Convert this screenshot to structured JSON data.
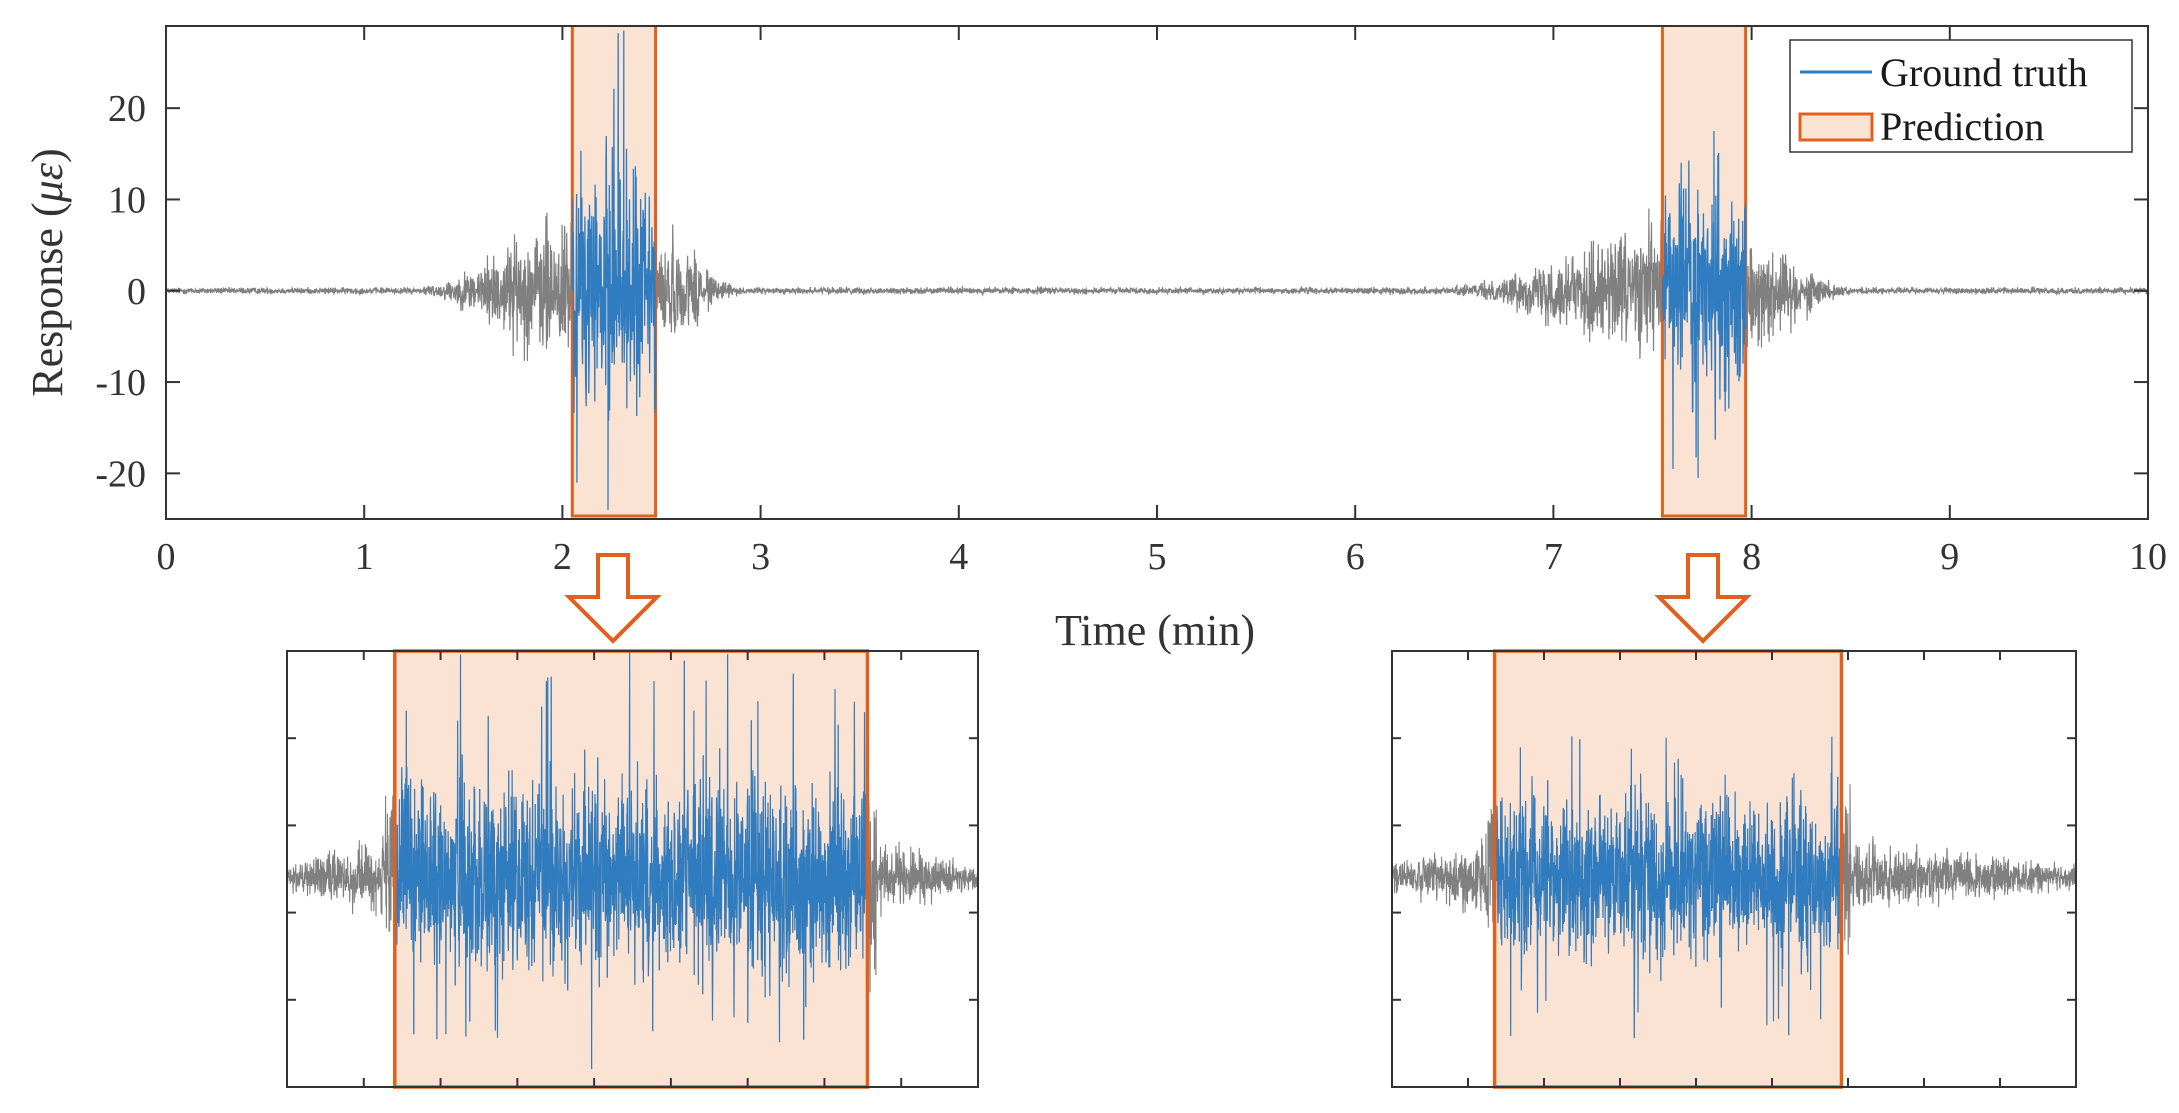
{
  "chart_data": [
    {
      "type": "line",
      "role": "main",
      "xlabel": "Time (min)",
      "ylabel_prefix": "Response (",
      "ylabel_symbol": "με",
      "ylabel_suffix": ")",
      "xlim": [
        0,
        10
      ],
      "ylim": [
        -25,
        29
      ],
      "xticks": [
        0,
        1,
        2,
        3,
        4,
        5,
        6,
        7,
        8,
        9,
        10
      ],
      "yticks": [
        -20,
        -10,
        0,
        10,
        20
      ],
      "xtick_labels": [
        "0",
        "1",
        "2",
        "3",
        "4",
        "5",
        "6",
        "7",
        "8",
        "9",
        "10"
      ],
      "ytick_labels": [
        "-20",
        "-10",
        "0",
        "10",
        "20"
      ],
      "grid": false,
      "legend_position": "top-right",
      "series": [
        {
          "name": "Ground truth",
          "color": "#2f7cc0"
        },
        {
          "name": "Prediction",
          "color": "#e0601f",
          "fill": "#fbe3d4"
        }
      ],
      "background_color": "#808080",
      "events": [
        {
          "approach": [
            1.3,
            2.05
          ],
          "prediction": [
            2.05,
            2.47
          ],
          "decay": [
            2.47,
            2.9
          ],
          "peak_pos": 28.5,
          "peak_neg": -24.0,
          "typical_amplitude": 14
        },
        {
          "approach": [
            6.5,
            7.55
          ],
          "prediction": [
            7.55,
            7.97
          ],
          "decay": [
            7.97,
            8.5
          ],
          "peak_pos": 17.5,
          "peak_neg": -20.5,
          "typical_amplitude": 12
        }
      ]
    },
    {
      "type": "line",
      "role": "zoom-inset",
      "source_event": 0,
      "xlim": [
        1.9,
        2.65
      ],
      "prediction": [
        2.017,
        2.53
      ]
    },
    {
      "type": "line",
      "role": "zoom-inset",
      "source_event": 1,
      "xlim": [
        7.45,
        8.15
      ],
      "prediction": [
        7.555,
        7.91
      ]
    }
  ],
  "colors": {
    "ground_truth": "#2f7cc0",
    "prediction_edge": "#e0601f",
    "prediction_fill": "#fbe3d4",
    "background_signal": "#808080",
    "axes": "#333333"
  }
}
